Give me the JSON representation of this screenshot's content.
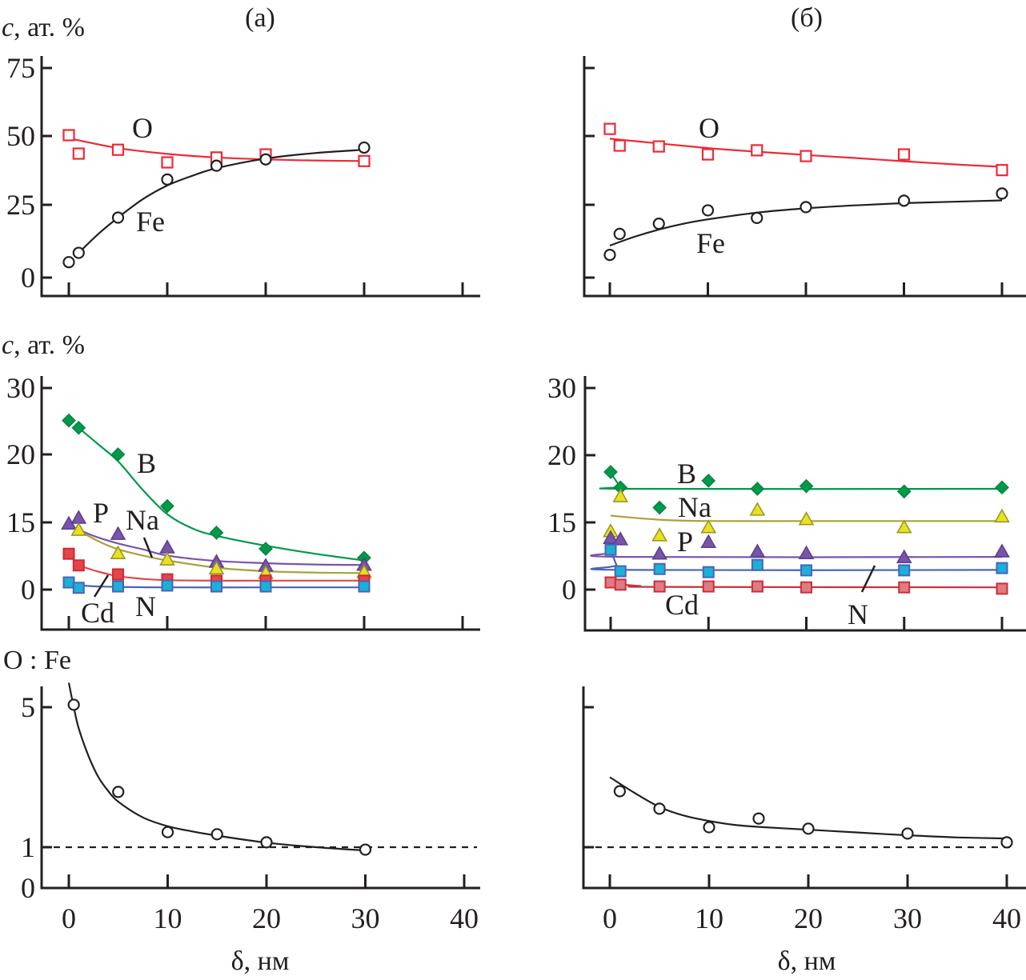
{
  "panel_titles": {
    "a": "(a)",
    "b": "(б)"
  },
  "axis_titles": {
    "conc": "ат. %",
    "conc_symbol": "c",
    "ratio": "O : Fe",
    "x": "δ, нм"
  },
  "x_ticks": {
    "a": [
      "0",
      "10",
      "20",
      "30",
      "40"
    ],
    "b": [
      "0",
      "10",
      "20",
      "30",
      "40"
    ]
  },
  "y_ticks": {
    "top": [
      "0",
      "25",
      "50",
      "75"
    ],
    "middle": [
      "0",
      "15",
      "20",
      "30"
    ],
    "bottom": [
      "0",
      "1",
      "5"
    ]
  },
  "colors": {
    "O": "#ee2a35",
    "Fe": "#231f20",
    "B": "#00984a",
    "P": "#7a54a8",
    "Na": "#e8e21c",
    "Na_line": "#a8a23a",
    "Cd_a": "#e0474c",
    "Cd_b": "#c8303a",
    "N": "#1ab1d6",
    "N_line": "#4b63b8"
  },
  "chart_data": [
    {
      "id": "a-top",
      "type": "scatter",
      "title": "(a)",
      "xlabel": "δ, нм",
      "ylabel": "c, ат. %",
      "xlim": [
        0,
        40
      ],
      "ylim": [
        0,
        75
      ],
      "x_ticks": [
        0,
        10,
        20,
        30,
        40
      ],
      "y_ticks": [
        0,
        25,
        50,
        75
      ],
      "series": [
        {
          "name": "O",
          "marker": "open-square",
          "label": "O",
          "x": [
            0,
            1,
            5,
            10,
            15,
            20,
            30
          ],
          "y": [
            50.3,
            43.6,
            45.0,
            40.4,
            42.2,
            43.3,
            40.9
          ],
          "fit": {
            "x": [
              0,
              5,
              10,
              15,
              20,
              25,
              30
            ],
            "y": [
              49.2,
              45.6,
              43.5,
              42.2,
              41.5,
              41.1,
              40.9
            ]
          }
        },
        {
          "name": "Fe",
          "marker": "open-circle",
          "label": "Fe",
          "x": [
            0,
            1,
            5,
            10,
            15,
            20,
            30
          ],
          "y": [
            5.3,
            8.5,
            20.6,
            34.2,
            39.2,
            41.5,
            45.8
          ],
          "fit": {
            "x": [
              1,
              3,
              5,
              7.5,
              10,
              12.5,
              15,
              20,
              25,
              30
            ],
            "y": [
              8.5,
              15.0,
              20.6,
              27.0,
              32.0,
              35.5,
              38.3,
              41.8,
              43.8,
              45.0
            ]
          }
        }
      ]
    },
    {
      "id": "b-top",
      "type": "scatter",
      "title": "(б)",
      "xlabel": "δ, нм",
      "ylabel": "c, ат. %",
      "xlim": [
        0,
        40
      ],
      "ylim": [
        0,
        75
      ],
      "x_ticks": [
        0,
        10,
        20,
        30,
        40
      ],
      "y_ticks": [
        0,
        25,
        50,
        75
      ],
      "series": [
        {
          "name": "O",
          "marker": "open-square",
          "label": "O",
          "x": [
            0,
            1,
            5,
            10,
            15,
            20,
            30,
            40
          ],
          "y": [
            52.6,
            46.5,
            46.2,
            43.3,
            44.8,
            42.7,
            43.3,
            37.6
          ],
          "fit": {
            "x": [
              0,
              5,
              10,
              15,
              20,
              25,
              30,
              35,
              40
            ],
            "y": [
              49.0,
              47.3,
              45.6,
              44.3,
              43.1,
              42.0,
              40.8,
              39.7,
              38.8
            ]
          }
        },
        {
          "name": "Fe",
          "marker": "open-circle",
          "label": "Fe",
          "x": [
            0,
            1,
            5,
            10,
            15,
            20,
            30,
            40
          ],
          "y": [
            7.8,
            15.0,
            18.5,
            23.1,
            20.5,
            24.2,
            26.5,
            29.1
          ],
          "fit": {
            "x": [
              0,
              2.5,
              5,
              7.5,
              10,
              15,
              20,
              25,
              30,
              35,
              40
            ],
            "y": [
              11.0,
              14.0,
              16.5,
              18.5,
              20.0,
              22.3,
              23.8,
              24.8,
              25.6,
              26.1,
              26.6
            ]
          }
        }
      ]
    },
    {
      "id": "a-middle",
      "type": "scatter",
      "xlabel": "δ, нм",
      "ylabel": "c, ат. %",
      "xlim": [
        0,
        40
      ],
      "y_ticks": [
        0,
        15,
        20,
        30
      ],
      "series": [
        {
          "name": "B",
          "marker": "filled-diamond",
          "label": "B",
          "x": [
            0,
            1,
            5,
            10,
            15,
            20,
            30
          ],
          "y": [
            25.1,
            24.0,
            20.0,
            16.2,
            12.7,
            9.1,
            7.1
          ],
          "fit": {
            "x": [
              1,
              3,
              5,
              7.5,
              10,
              12.5,
              15,
              20,
              25,
              30
            ],
            "y": [
              24.0,
              21.5,
              19.5,
              17.4,
              15.6,
              13.7,
              12.0,
              9.8,
              8.0,
              6.5
            ]
          }
        },
        {
          "name": "P",
          "marker": "filled-triangle",
          "label": "P",
          "x": [
            0,
            1,
            5,
            10,
            15,
            20,
            30
          ],
          "y": [
            14.6,
            15.3,
            12.3,
            9.3,
            6.1,
            5.2,
            5.4
          ],
          "fit": {
            "x": [
              0,
              2.5,
              5,
              7.5,
              10,
              15,
              20,
              25,
              30
            ],
            "y": [
              14.4,
              12.0,
              10.3,
              9.0,
              7.6,
              6.4,
              5.9,
              5.6,
              5.5
            ]
          }
        },
        {
          "name": "Na",
          "marker": "filled-triangle",
          "label": "Na",
          "x": [
            1,
            5,
            10,
            15,
            20,
            30
          ],
          "y": [
            13.2,
            8.0,
            6.6,
            4.6,
            3.6,
            3.8
          ],
          "fit": {
            "x": [
              1,
              3,
              5,
              7.5,
              10,
              15,
              20,
              25,
              30
            ],
            "y": [
              13.2,
              10.8,
              9.0,
              7.6,
              6.5,
              4.9,
              4.1,
              3.8,
              3.7
            ]
          }
        },
        {
          "name": "Cd",
          "marker": "filled-square",
          "label": "Cd",
          "x": [
            0,
            1,
            5,
            10,
            15,
            20,
            30
          ],
          "y": [
            8.0,
            5.4,
            3.4,
            2.3,
            2.0,
            2.0,
            2.0
          ],
          "fit": {
            "x": [
              1,
              3,
              5,
              7.5,
              10,
              15,
              20,
              30
            ],
            "y": [
              5.4,
              4.0,
              3.0,
              2.4,
              2.1,
              2.0,
              2.0,
              2.0
            ]
          }
        },
        {
          "name": "N",
          "marker": "filled-square",
          "label": "N",
          "x": [
            0,
            1,
            5,
            10,
            15,
            20,
            30
          ],
          "y": [
            1.6,
            0.4,
            0.7,
            0.9,
            0.7,
            0.7,
            0.7
          ],
          "fit": {
            "x": [
              0,
              2,
              5,
              10,
              20,
              30
            ],
            "y": [
              1.3,
              0.8,
              0.6,
              0.5,
              0.5,
              0.5
            ]
          }
        }
      ]
    },
    {
      "id": "b-middle",
      "type": "scatter",
      "xlabel": "δ, нм",
      "ylabel": "c, ат. %",
      "xlim": [
        0,
        40
      ],
      "y_ticks": [
        0,
        15,
        20,
        30
      ],
      "series": [
        {
          "name": "B",
          "marker": "filled-diamond",
          "label": "B",
          "x": [
            0,
            1,
            5,
            10,
            15,
            20,
            30,
            40
          ],
          "y": [
            18.75,
            17.6,
            16.1,
            18.1,
            17.5,
            17.7,
            17.3,
            17.6
          ],
          "fit": {
            "x": [
              0,
              1,
              2,
              40
            ],
            "y": [
              18.7,
              17.7,
              17.5,
              17.5
            ]
          }
        },
        {
          "name": "Na",
          "marker": "filled-triangle",
          "label": "Na",
          "x": [
            0,
            1,
            5,
            10,
            15,
            20,
            30,
            40
          ],
          "y": [
            12.9,
            16.9,
            12.0,
            13.8,
            15.9,
            15.2,
            13.8,
            15.4
          ],
          "fit": {
            "x": [
              0,
              5,
              10,
              20,
              30,
              40
            ],
            "y": [
              15.5,
              15.2,
              15.1,
              15.1,
              15.1,
              15.1
            ]
          }
        },
        {
          "name": "P",
          "marker": "filled-triangle",
          "label": "P",
          "x": [
            0,
            1,
            5,
            10,
            15,
            20,
            30,
            40
          ],
          "y": [
            11.4,
            11.1,
            7.9,
            10.5,
            8.4,
            8.0,
            7.1,
            8.4
          ],
          "fit": {
            "x": [
              0,
              0.5,
              1,
              40
            ],
            "y": [
              11.0,
              8.5,
              7.3,
              7.3
            ]
          }
        },
        {
          "name": "N",
          "marker": "filled-square",
          "label": "N",
          "x": [
            0,
            1,
            5,
            10,
            15,
            20,
            30,
            40
          ],
          "y": [
            8.9,
            4.1,
            4.6,
            3.9,
            5.5,
            4.3,
            4.3,
            4.8
          ],
          "fit": {
            "x": [
              0,
              0.6,
              1,
              40
            ],
            "y": [
              8.9,
              5.5,
              4.4,
              4.4
            ]
          }
        },
        {
          "name": "Cd",
          "marker": "filled-square",
          "label": "Cd",
          "x": [
            0,
            1,
            5,
            10,
            15,
            20,
            30,
            40
          ],
          "y": [
            1.6,
            1.1,
            0.7,
            0.7,
            0.7,
            0.5,
            0.5,
            0.2
          ],
          "fit": {
            "x": [
              0,
              1,
              3,
              5,
              40
            ],
            "y": [
              1.6,
              1.2,
              0.8,
              0.6,
              0.5
            ]
          }
        }
      ]
    },
    {
      "id": "a-bottom",
      "type": "scatter",
      "xlabel": "δ, нм",
      "ylabel": "O : Fe",
      "xlim": [
        0,
        40
      ],
      "y_ticks": [
        0,
        1,
        5
      ],
      "reference_line": 1,
      "series": [
        {
          "name": "O:Fe",
          "marker": "open-circle",
          "x": [
            0.5,
            5,
            10,
            15,
            20,
            30
          ],
          "y": [
            5.07,
            2.58,
            1.43,
            1.37,
            1.14,
            0.94
          ],
          "fit": {
            "x": [
              0,
              0.5,
              1,
              2,
              3,
              4,
              5,
              7.5,
              10,
              12.5,
              15,
              20,
              25,
              30
            ],
            "y": [
              5.7,
              5.0,
              4.4,
              3.6,
              3.0,
              2.6,
              2.3,
              1.85,
              1.6,
              1.45,
              1.33,
              1.13,
              1.0,
              0.92
            ]
          }
        }
      ]
    },
    {
      "id": "b-bottom",
      "type": "scatter",
      "xlabel": "δ, нм",
      "ylabel": "O : Fe",
      "xlim": [
        0,
        40
      ],
      "y_ticks": [
        0,
        1,
        5
      ],
      "reference_line": 1,
      "series": [
        {
          "name": "O:Fe",
          "marker": "open-circle",
          "x": [
            1,
            5,
            10,
            15,
            20,
            30,
            40
          ],
          "y": [
            2.6,
            2.1,
            1.57,
            1.82,
            1.53,
            1.39,
            1.14
          ],
          "fit": {
            "x": [
              0,
              2.5,
              5,
              7.5,
              10,
              12.5,
              15,
              20,
              25,
              30,
              35,
              40
            ],
            "y": [
              3.0,
              2.55,
              2.15,
              1.9,
              1.75,
              1.64,
              1.58,
              1.5,
              1.42,
              1.34,
              1.28,
              1.25
            ]
          }
        }
      ]
    }
  ]
}
